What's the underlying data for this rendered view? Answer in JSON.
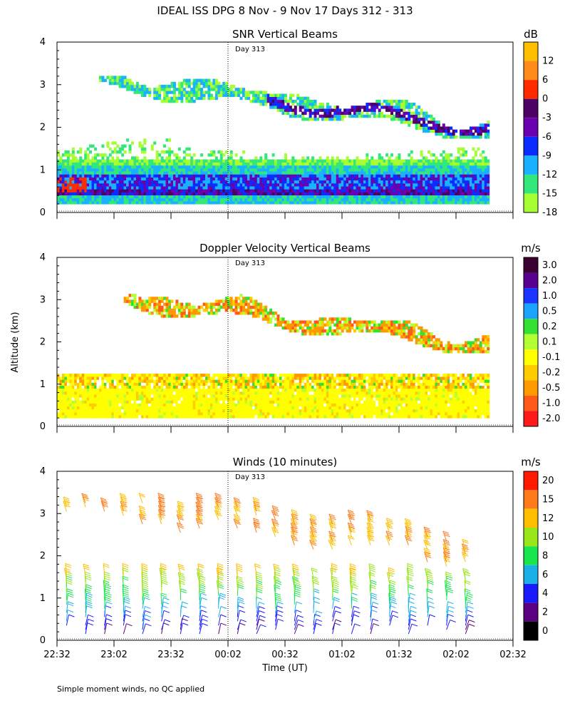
{
  "figure_title": "IDEAL ISS DPG   8 Nov -  9 Nov 17 Days 312 - 313",
  "footnote": "Simple moment winds, no QC applied",
  "chart_data": [
    {
      "type": "heatmap",
      "title": "SNR Vertical Beams",
      "ylabel": "",
      "xlabel": "",
      "ylim": [
        0,
        4
      ],
      "y_ticks": [
        "0",
        "1",
        "2",
        "3",
        "4"
      ],
      "day_marker": "Day 313",
      "colorbar_unit": "dB",
      "colorbar_labels": [
        "12",
        "6",
        "0",
        "-3",
        "-6",
        "-9",
        "-12",
        "-15",
        "-18"
      ],
      "colorbar_colors": [
        "#ffbf00",
        "#ff8c1a",
        "#ff2a00",
        "#4d0066",
        "#6a00b0",
        "#0a2dff",
        "#1ab2ff",
        "#33e87a",
        "#a6ff33"
      ],
      "layers": [
        {
          "name": "boundary-layer",
          "start": "22:32",
          "end": "02:19",
          "bottom_km": 0.2,
          "top_km": 1.5
        },
        {
          "name": "upper-layer",
          "start": "22:56",
          "end": "02:19",
          "bottom_km_start": 2.9,
          "bottom_km_end": 1.6
        }
      ]
    },
    {
      "type": "heatmap",
      "title": "Doppler Velocity Vertical Beams",
      "ylabel": "Altitude (km)",
      "xlabel": "",
      "ylim": [
        0,
        4
      ],
      "y_ticks": [
        "0",
        "1",
        "2",
        "3",
        "4"
      ],
      "day_marker": "Day 313",
      "colorbar_unit": "m/s",
      "colorbar_labels": [
        "3.0",
        "2.0",
        "1.0",
        "0.5",
        "0.2",
        "0.1",
        "-0.1",
        "-0.2",
        "-0.5",
        "-1.0",
        "-2.0"
      ],
      "colorbar_colors": [
        "#3a0030",
        "#5a0090",
        "#1a33ff",
        "#1aa3ff",
        "#33e033",
        "#b3ff33",
        "#ffff00",
        "#ffcc00",
        "#ff9900",
        "#ff5a1a",
        "#ff1a1a"
      ]
    },
    {
      "type": "scatter",
      "title": "Winds (10 minutes)",
      "ylabel": "",
      "xlabel": "Time (UT)",
      "ylim": [
        0,
        4
      ],
      "y_ticks": [
        "0",
        "1",
        "2",
        "3",
        "4"
      ],
      "x_ticks": [
        "22:32",
        "23:02",
        "23:32",
        "00:02",
        "00:32",
        "01:02",
        "01:32",
        "02:02",
        "02:32"
      ],
      "day_marker": "Day 313",
      "colorbar_unit": "m/s",
      "colorbar_labels": [
        "20",
        "15",
        "12",
        "10",
        "8",
        "6",
        "4",
        "2",
        "0"
      ],
      "colorbar_colors": [
        "#ff1a00",
        "#ff7a1a",
        "#ffbf00",
        "#99e61a",
        "#1ae64d",
        "#1ab2e6",
        "#1a1aff",
        "#5a0080",
        "#000000"
      ]
    }
  ]
}
